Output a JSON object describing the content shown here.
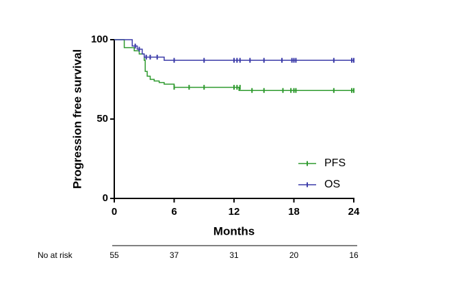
{
  "chart_data": {
    "type": "step",
    "xlabel": "Months",
    "ylabel": "Progression free survival",
    "xlim": [
      0,
      24
    ],
    "ylim": [
      0,
      100
    ],
    "xticks": [
      0,
      6,
      12,
      18,
      24
    ],
    "yticks": [
      0,
      50,
      100
    ],
    "legend": "lower right",
    "series": [
      {
        "name": "PFS",
        "color": "#2e9a2e",
        "x": [
          0,
          1,
          1,
          2,
          2,
          2.5,
          2.5,
          3,
          3,
          3.1,
          3.1,
          3.3,
          3.3,
          3.6,
          3.6,
          4,
          4,
          4.5,
          4.5,
          5,
          5,
          6,
          6,
          12.5,
          12.5,
          24
        ],
        "values": [
          100,
          100,
          95,
          95,
          93,
          93,
          91,
          91,
          87,
          87,
          80,
          80,
          77,
          77,
          75,
          75,
          74,
          74,
          73,
          73,
          72,
          72,
          70,
          70,
          68,
          68
        ],
        "censored": {
          "x": [
            6,
            7.5,
            9,
            12,
            12.3,
            12.6,
            13.8,
            15,
            16.9,
            17.7,
            18,
            18.2,
            22,
            23.8,
            24
          ],
          "values": [
            70,
            70,
            70,
            70,
            70,
            70,
            68,
            68,
            68,
            68,
            68,
            68,
            68,
            68,
            68
          ]
        }
      },
      {
        "name": "OS",
        "color": "#3a3aa8",
        "x": [
          0,
          1.8,
          1.8,
          2.3,
          2.3,
          2.8,
          2.8,
          3,
          3,
          5,
          5,
          24
        ],
        "values": [
          100,
          100,
          96,
          96,
          94,
          94,
          91,
          91,
          89,
          89,
          87,
          87
        ],
        "censored": {
          "x": [
            2.1,
            2.5,
            3.2,
            3.6,
            4.3,
            6,
            9,
            12,
            12.3,
            12.6,
            13.6,
            15,
            16.8,
            17.8,
            18,
            18.2,
            22,
            23.8,
            24
          ],
          "values": [
            96,
            94,
            89,
            89,
            89,
            87,
            87,
            87,
            87,
            87,
            87,
            87,
            87,
            87,
            87,
            87,
            87,
            87,
            87
          ]
        }
      }
    ],
    "risk_table": {
      "label": "No at risk",
      "values": [
        55,
        37,
        31,
        20,
        16
      ]
    }
  }
}
